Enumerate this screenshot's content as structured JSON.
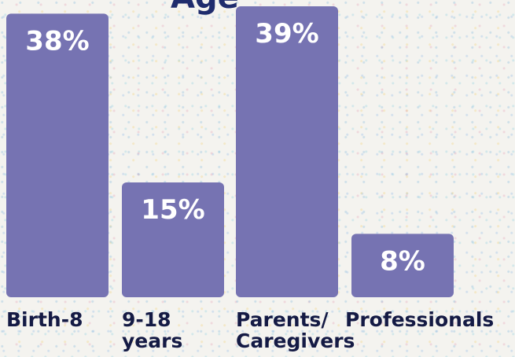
{
  "chart_data": {
    "type": "bar",
    "title": "Age",
    "categories": [
      [
        "Birth-8"
      ],
      [
        "9-18",
        "years"
      ],
      [
        "Parents/",
        "Caregivers"
      ],
      [
        "Professionals"
      ]
    ],
    "values": [
      38,
      15,
      39,
      8
    ],
    "value_labels": [
      "38%",
      "15%",
      "39%",
      "8%"
    ],
    "xlabel": "",
    "ylabel": "",
    "ylim": [
      0,
      40
    ],
    "grid": false,
    "legend": "none"
  },
  "colors": {
    "bar": "#7673b2",
    "bar_text": "#ffffff",
    "category_text": "#141a44",
    "title_text": "#1f2c6d",
    "background": "#f4f3ef"
  }
}
